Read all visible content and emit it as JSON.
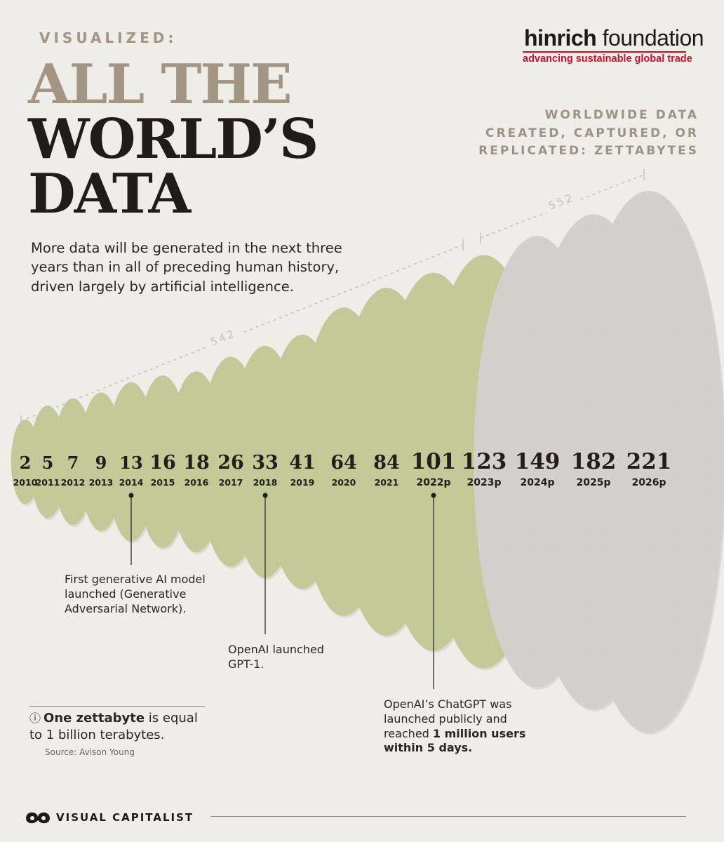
{
  "header": {
    "kicker": "VISUALIZED:",
    "title_lines": [
      "ALL THE",
      "WORLD’S",
      "DATA"
    ],
    "intro": "More data will be generated in the next three years than in all of preceding human history, driven largely by artificial intelligence."
  },
  "sponsor": {
    "name_bold": "hinrich",
    "name_rest": " foundation",
    "tagline": "advancing sustainable global trade"
  },
  "colors": {
    "actual": "#c3c997",
    "projected": "#d3d1cc",
    "title_accent": "#a29584",
    "title_dark": "#201d18",
    "brand_red": "#c8102e"
  },
  "chart_data": {
    "type": "bar",
    "unit_label": [
      "WORLDWIDE DATA",
      "CREATED, CAPTURED, OR",
      "REPLICATED: ZETTABYTES"
    ],
    "categories": [
      "2010",
      "2011",
      "2012",
      "2013",
      "2014",
      "2015",
      "2016",
      "2017",
      "2018",
      "2019",
      "2020",
      "2021",
      "2022p",
      "2023p",
      "2024p",
      "2025p",
      "2026p"
    ],
    "values": [
      2,
      5,
      7,
      9,
      13,
      16,
      18,
      26,
      33,
      41,
      64,
      84,
      101,
      123,
      149,
      182,
      221
    ],
    "projected_from": "2024p",
    "brackets": [
      {
        "label": "542",
        "from": "2010",
        "to": "2023p"
      },
      {
        "label": "552",
        "from": "2024p",
        "to": "2026p"
      }
    ],
    "annotations": [
      {
        "category": "2014",
        "text": "First generative AI model launched (Generative Adversarial Network)."
      },
      {
        "category": "2018",
        "text": "OpenAI launched GPT-1."
      },
      {
        "category": "2022p",
        "text_parts": [
          "OpenAI’s ChatGPT was launched publicly and reached ",
          "1 million users within 5 days."
        ]
      }
    ]
  },
  "info": {
    "icon": "info-icon",
    "bold": "One zettabyte",
    "rest": " is equal to 1 billion terabytes.",
    "source": "Source: Avison Young"
  },
  "footer": {
    "brand": "VISUAL CAPITALIST"
  }
}
